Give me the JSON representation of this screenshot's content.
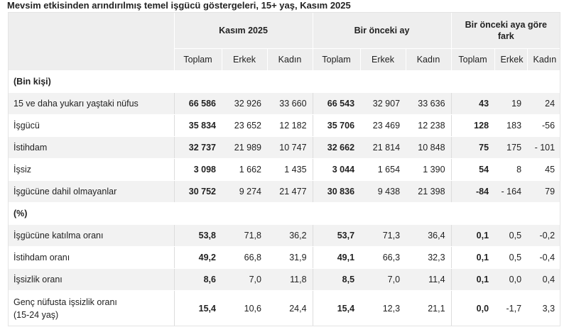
{
  "title": "Mevsim etkisinden arındırılmış temel işgücü göstergeleri, 15+ yaş, Kasım 2025",
  "header": {
    "groups": [
      "Kasım 2025",
      "Bir önceki ay",
      "Bir önceki aya göre fark"
    ],
    "sub": [
      "Toplam",
      "Erkek",
      "Kadın",
      "Toplam",
      "Erkek",
      "Kadın",
      "Toplam",
      "Erkek",
      "Kadın"
    ]
  },
  "sections": [
    {
      "label": "(Bin kişi)",
      "rows": [
        {
          "label": "15 ve daha yukarı yaştaki nüfus",
          "values": [
            "66 586",
            "32 926",
            "33 660",
            "66 543",
            "32 907",
            "33 636",
            "43",
            "19",
            "24"
          ]
        },
        {
          "label": "İşgücü",
          "values": [
            "35 834",
            "23 652",
            "12 182",
            "35 706",
            "23 469",
            "12 238",
            "128",
            "183",
            "-56"
          ]
        },
        {
          "label": "İstihdam",
          "values": [
            "32 737",
            "21 989",
            "10 747",
            "32 662",
            "21 814",
            "10 848",
            "75",
            "175",
            "- 101"
          ]
        },
        {
          "label": "İşsiz",
          "values": [
            "3 098",
            "1 662",
            "1 435",
            "3 044",
            "1 654",
            "1 390",
            "54",
            "8",
            "45"
          ]
        },
        {
          "label": "İşgücüne dahil olmayanlar",
          "values": [
            "30 752",
            "9 274",
            "21 477",
            "30 836",
            "9 438",
            "21 398",
            "-84",
            "- 164",
            "79"
          ]
        }
      ]
    },
    {
      "label": "(%)",
      "rows": [
        {
          "label": "İşgücüne katılma oranı",
          "values": [
            "53,8",
            "71,8",
            "36,2",
            "53,7",
            "71,3",
            "36,4",
            "0,1",
            "0,5",
            "-0,2"
          ]
        },
        {
          "label": "İstihdam oranı",
          "values": [
            "49,2",
            "66,8",
            "31,9",
            "49,1",
            "66,3",
            "32,3",
            "0,1",
            "0,5",
            "-0,4"
          ]
        },
        {
          "label": "İşsizlik oranı",
          "values": [
            "8,6",
            "7,0",
            "11,8",
            "8,5",
            "7,0",
            "11,4",
            "0,1",
            "0,0",
            "0,4"
          ]
        },
        {
          "label": "Genç nüfusta işsizlik oranı",
          "label_line2": "(15-24 yaş)",
          "values": [
            "15,4",
            "10,6",
            "24,4",
            "15,4",
            "12,3",
            "21,1",
            "0,0",
            "-1,7",
            "3,3"
          ]
        }
      ]
    }
  ]
}
